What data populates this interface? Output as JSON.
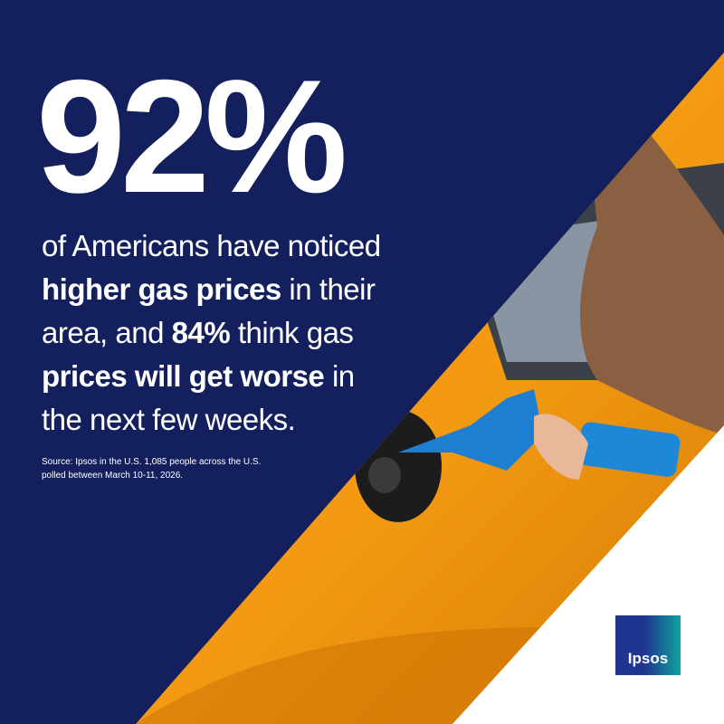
{
  "headline": "92%",
  "body": {
    "lines": [
      [
        {
          "text": "of Americans have noticed"
        }
      ],
      [
        {
          "text": "higher gas prices"
        },
        {
          "text": " in their"
        }
      ],
      [
        {
          "text": "area, and "
        },
        {
          "text": "84%"
        },
        {
          "text": " think gas"
        }
      ],
      [
        {
          "text": "prices will get worse"
        },
        {
          "text": " in"
        }
      ],
      [
        {
          "text": "the next few weeks."
        }
      ]
    ]
  },
  "source": [
    "Source:  Ipsos in the U.S. 1,085 people across the U.S.",
    "polled between March 10-11, 2026."
  ],
  "logo": "Ipsos"
}
